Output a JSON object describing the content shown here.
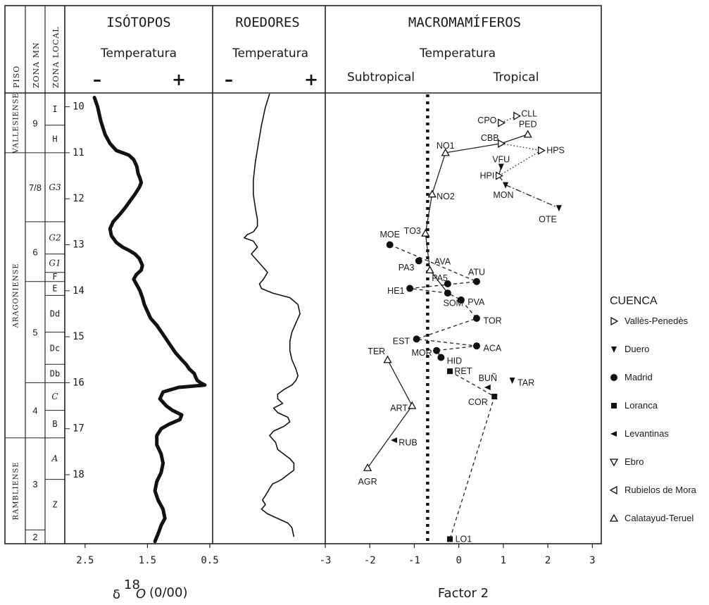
{
  "headers": {
    "piso": "PISO",
    "zona_mn": "ZONA MN",
    "zona_local": "ZONA LOCAL",
    "isotopos": "ISÓTOPOS",
    "roedores": "ROEDORES",
    "macromamiferos": "MACROMAMÍFEROS",
    "temperatura": "Temperatura",
    "minus": "–",
    "plus": "+",
    "subtropical": "Subtropical",
    "tropical": "Tropical"
  },
  "pisos": [
    {
      "label": "VALLESIENSE",
      "from": 9.7,
      "to": 11.0
    },
    {
      "label": "ARAGONIENSE",
      "from": 11.0,
      "to": 17.2
    },
    {
      "label": "RAMBLIENSE",
      "from": 17.2,
      "to": 19.5
    }
  ],
  "mn_zones": [
    {
      "label": "9",
      "from": 9.7,
      "to": 11.0
    },
    {
      "label": "7/8",
      "from": 11.0,
      "to": 12.5
    },
    {
      "label": "6",
      "from": 12.5,
      "to": 13.8
    },
    {
      "label": "5",
      "from": 13.8,
      "to": 16.0
    },
    {
      "label": "4",
      "from": 16.0,
      "to": 17.2
    },
    {
      "label": "3",
      "from": 17.2,
      "to": 19.2
    },
    {
      "label": "2",
      "from": 19.2,
      "to": 19.5
    }
  ],
  "local_zones": [
    {
      "label": "I",
      "from": 9.7,
      "to": 10.4,
      "italic": false
    },
    {
      "label": "H",
      "from": 10.4,
      "to": 11.0,
      "italic": false
    },
    {
      "label": "G3",
      "from": 11.0,
      "to": 12.5,
      "italic": true
    },
    {
      "label": "G2",
      "from": 12.5,
      "to": 13.2,
      "italic": true
    },
    {
      "label": "G1",
      "from": 13.2,
      "to": 13.6,
      "italic": true
    },
    {
      "label": "F",
      "from": 13.6,
      "to": 13.8,
      "italic": false
    },
    {
      "label": "E",
      "from": 13.8,
      "to": 14.1,
      "italic": false
    },
    {
      "label": "Dd",
      "from": 14.1,
      "to": 14.9,
      "italic": false
    },
    {
      "label": "Dc",
      "from": 14.9,
      "to": 15.6,
      "italic": false
    },
    {
      "label": "Db",
      "from": 15.6,
      "to": 16.0,
      "italic": false
    },
    {
      "label": "C",
      "from": 16.0,
      "to": 16.6,
      "italic": true
    },
    {
      "label": "B",
      "from": 16.6,
      "to": 17.2,
      "italic": false
    },
    {
      "label": "A",
      "from": 17.2,
      "to": 18.1,
      "italic": true
    },
    {
      "label": "Z",
      "from": 18.1,
      "to": 19.2,
      "italic": false
    }
  ],
  "age_ticks": [
    "10",
    "11",
    "12",
    "13",
    "14",
    "15",
    "16",
    "17",
    "18"
  ],
  "chart_data": [
    {
      "type": "line",
      "panel": "isotopos",
      "xlabel_symbol": "δ",
      "xlabel_sup": "18",
      "xlabel_var": "O",
      "xlabel_unit": "(0/00)",
      "xlim": [
        2.6,
        0.5
      ],
      "x_ticks": [
        "2.5",
        "1.5",
        "0.5"
      ],
      "x_tick_values": [
        2.5,
        1.5,
        0.5
      ],
      "ylim": [
        9.7,
        19.5
      ],
      "series": [
        {
          "x": [
            2.35,
            2.3,
            2.25,
            2.18,
            2.1,
            2.0,
            1.9,
            1.8,
            1.72,
            1.67,
            1.65,
            1.62,
            1.6,
            1.63,
            1.7,
            1.78,
            1.86,
            1.95,
            2.05,
            2.1,
            2.08,
            2.0,
            1.9,
            1.8,
            1.7,
            1.63,
            1.58,
            1.6,
            1.68,
            1.72,
            1.68,
            1.62,
            1.58,
            1.55,
            1.5,
            1.45,
            1.35,
            1.25,
            1.15,
            1.05,
            0.95,
            0.88,
            0.83,
            0.75,
            0.72,
            0.7,
            0.65,
            0.58,
            1.0,
            1.25,
            1.3,
            1.2,
            1.1,
            0.95,
            0.98,
            1.15,
            1.28,
            1.35,
            1.35,
            1.28,
            1.25,
            1.28,
            1.35,
            1.38,
            1.33,
            1.25,
            1.22,
            1.28,
            1.32,
            1.38
          ],
          "y": [
            9.8,
            10.0,
            10.3,
            10.6,
            10.8,
            10.95,
            11.0,
            11.05,
            11.15,
            11.3,
            11.45,
            11.55,
            11.65,
            11.75,
            11.9,
            12.05,
            12.2,
            12.35,
            12.5,
            12.65,
            12.8,
            12.95,
            13.05,
            13.12,
            13.2,
            13.3,
            13.45,
            13.55,
            13.65,
            13.75,
            13.85,
            14.0,
            14.15,
            14.3,
            14.45,
            14.6,
            14.75,
            14.95,
            15.15,
            15.35,
            15.5,
            15.6,
            15.7,
            15.8,
            15.9,
            15.95,
            16.0,
            16.05,
            16.1,
            16.2,
            16.35,
            16.5,
            16.6,
            16.7,
            16.8,
            16.9,
            17.0,
            17.15,
            17.35,
            17.55,
            17.75,
            17.95,
            18.15,
            18.35,
            18.55,
            18.75,
            18.95,
            19.1,
            19.25,
            19.45
          ]
        }
      ]
    },
    {
      "type": "line",
      "panel": "roedores",
      "xlim": [
        0.0,
        1.0
      ],
      "ylim": [
        9.7,
        19.5
      ],
      "series": [
        {
          "x": [
            0.52,
            0.48,
            0.44,
            0.41,
            0.38,
            0.36,
            0.36,
            0.38,
            0.4,
            0.4,
            0.36,
            0.3,
            0.27,
            0.36,
            0.4,
            0.34,
            0.4,
            0.44,
            0.5,
            0.46,
            0.42,
            0.44,
            0.55,
            0.72,
            0.8,
            0.82,
            0.78,
            0.74,
            0.72,
            0.72,
            0.74,
            0.78,
            0.8,
            0.78,
            0.74,
            0.66,
            0.6,
            0.6,
            0.65,
            0.56,
            0.6,
            0.7,
            0.72,
            0.66,
            0.56,
            0.52,
            0.58,
            0.6,
            0.66,
            0.72,
            0.76,
            0.76,
            0.7,
            0.64,
            0.6,
            0.55,
            0.52,
            0.48,
            0.45,
            0.48,
            0.44,
            0.5,
            0.6,
            0.7,
            0.74,
            0.76
          ],
          "y": [
            9.72,
            10.0,
            10.4,
            10.8,
            11.2,
            11.6,
            11.9,
            12.2,
            12.45,
            12.6,
            12.72,
            12.78,
            12.85,
            12.92,
            13.05,
            13.2,
            13.35,
            13.45,
            13.6,
            13.75,
            13.85,
            13.95,
            14.05,
            14.15,
            14.3,
            14.5,
            14.7,
            14.9,
            15.1,
            15.3,
            15.5,
            15.7,
            15.85,
            15.95,
            16.05,
            16.15,
            16.25,
            16.35,
            16.45,
            16.55,
            16.65,
            16.75,
            16.85,
            16.95,
            17.05,
            17.15,
            17.3,
            17.45,
            17.55,
            17.65,
            17.75,
            17.9,
            18.0,
            18.1,
            18.15,
            18.2,
            18.3,
            18.45,
            18.55,
            18.65,
            18.75,
            18.85,
            18.95,
            19.05,
            19.15,
            19.35
          ]
        }
      ]
    },
    {
      "type": "scatter",
      "panel": "macromamiferos",
      "xlabel": "Factor 2",
      "xlim": [
        -3,
        3.2
      ],
      "x_ticks": [
        "-3",
        "-2",
        "-1",
        "0",
        "1",
        "2",
        "3"
      ],
      "x_tick_values": [
        -3,
        -2,
        -1,
        0,
        1,
        2,
        3
      ],
      "ylim": [
        9.7,
        19.5
      ],
      "threshold_x": -0.7,
      "points": [
        {
          "label": "CLL",
          "x": 1.3,
          "y": 10.2,
          "marker": "tri-right",
          "lx": 0.1,
          "ly": -0.05,
          "anchor": "start"
        },
        {
          "label": "CPO",
          "x": 0.95,
          "y": 10.35,
          "marker": "tri-right",
          "lx": -0.1,
          "ly": -0.05,
          "anchor": "end"
        },
        {
          "label": "PED",
          "x": 1.55,
          "y": 10.6,
          "marker": "tri-up",
          "lx": 0.0,
          "ly": -0.22,
          "anchor": "middle"
        },
        {
          "label": "CBB",
          "x": 0.95,
          "y": 10.8,
          "marker": "tri-right",
          "lx": -0.05,
          "ly": -0.12,
          "anchor": "end"
        },
        {
          "label": "NO1",
          "x": -0.3,
          "y": 11.0,
          "marker": "tri-up",
          "lx": 0.0,
          "ly": -0.15,
          "anchor": "middle"
        },
        {
          "label": "HPS",
          "x": 1.85,
          "y": 10.95,
          "marker": "tri-right",
          "lx": 0.12,
          "ly": 0.0,
          "anchor": "start"
        },
        {
          "label": "VFU",
          "x": 0.95,
          "y": 11.3,
          "marker": "tri-down",
          "lx": 0.0,
          "ly": -0.15,
          "anchor": "middle"
        },
        {
          "label": "HPI",
          "x": 0.9,
          "y": 11.5,
          "marker": "tri-right",
          "lx": -0.1,
          "ly": 0.0,
          "anchor": "end"
        },
        {
          "label": "MON",
          "x": 1.05,
          "y": 11.7,
          "marker": "tri-down",
          "lx": -0.05,
          "ly": 0.22,
          "anchor": "middle"
        },
        {
          "label": "NO2",
          "x": -0.6,
          "y": 11.9,
          "marker": "tri-up",
          "lx": 0.1,
          "ly": 0.05,
          "anchor": "start"
        },
        {
          "label": "OTE",
          "x": 2.25,
          "y": 12.2,
          "marker": "tri-down",
          "lx": -0.05,
          "ly": 0.25,
          "anchor": "end"
        },
        {
          "label": "TO3",
          "x": -0.75,
          "y": 12.75,
          "marker": "tri-up",
          "lx": -0.1,
          "ly": -0.05,
          "anchor": "end"
        },
        {
          "label": "MOE",
          "x": -1.55,
          "y": 13.0,
          "marker": "circle",
          "lx": 0.0,
          "ly": -0.22,
          "anchor": "middle"
        },
        {
          "label": "PA3",
          "x": -0.9,
          "y": 13.35,
          "marker": "circle",
          "lx": -0.1,
          "ly": 0.15,
          "anchor": "end"
        },
        {
          "label": "AVA",
          "x": -0.65,
          "y": 13.55,
          "marker": "tri-up",
          "lx": 0.1,
          "ly": -0.18,
          "anchor": "start"
        },
        {
          "label": "ATU",
          "x": 0.4,
          "y": 13.8,
          "marker": "circle",
          "lx": 0.0,
          "ly": -0.2,
          "anchor": "middle"
        },
        {
          "label": "PA5",
          "x": -0.25,
          "y": 13.85,
          "marker": "circle",
          "lx": 0.0,
          "ly": -0.12,
          "anchor": "end"
        },
        {
          "label": "HE1",
          "x": -1.1,
          "y": 13.95,
          "marker": "circle",
          "lx": -0.12,
          "ly": 0.05,
          "anchor": "end"
        },
        {
          "label": "SOM",
          "x": -0.25,
          "y": 14.05,
          "marker": "circle",
          "lx": -0.1,
          "ly": 0.22,
          "anchor": "start"
        },
        {
          "label": "PVA",
          "x": 0.05,
          "y": 14.2,
          "marker": "circle",
          "lx": 0.15,
          "ly": 0.05,
          "anchor": "start"
        },
        {
          "label": "TOR",
          "x": 0.4,
          "y": 14.6,
          "marker": "circle",
          "lx": 0.15,
          "ly": 0.05,
          "anchor": "start"
        },
        {
          "label": "EST",
          "x": -0.95,
          "y": 15.05,
          "marker": "circle",
          "lx": -0.15,
          "ly": 0.05,
          "anchor": "end"
        },
        {
          "label": "ACA",
          "x": 0.4,
          "y": 15.2,
          "marker": "circle",
          "lx": 0.15,
          "ly": 0.05,
          "anchor": "start"
        },
        {
          "label": "MOR",
          "x": -0.5,
          "y": 15.3,
          "marker": "circle",
          "lx": -0.1,
          "ly": 0.05,
          "anchor": "end"
        },
        {
          "label": "HID",
          "x": -0.4,
          "y": 15.45,
          "marker": "circle",
          "lx": 0.13,
          "ly": 0.08,
          "anchor": "start"
        },
        {
          "label": "TER",
          "x": -1.6,
          "y": 15.5,
          "marker": "tri-up",
          "lx": -0.25,
          "ly": -0.18,
          "anchor": "middle"
        },
        {
          "label": "RET",
          "x": -0.2,
          "y": 15.75,
          "marker": "square",
          "lx": 0.1,
          "ly": 0.0,
          "anchor": "start"
        },
        {
          "label": "TAR",
          "x": 1.2,
          "y": 15.95,
          "marker": "tri-down",
          "lx": 0.12,
          "ly": 0.05,
          "anchor": "start"
        },
        {
          "label": "BUÑ",
          "x": 0.65,
          "y": 16.1,
          "marker": "tri-left",
          "lx": 0.0,
          "ly": -0.2,
          "anchor": "middle"
        },
        {
          "label": "COR",
          "x": 0.8,
          "y": 16.3,
          "marker": "square",
          "lx": -0.15,
          "ly": 0.12,
          "anchor": "end"
        },
        {
          "label": "ART",
          "x": -1.05,
          "y": 16.5,
          "marker": "tri-up",
          "lx": -0.1,
          "ly": 0.05,
          "anchor": "end"
        },
        {
          "label": "RUB",
          "x": -1.45,
          "y": 17.25,
          "marker": "tri-left",
          "lx": 0.1,
          "ly": 0.05,
          "anchor": "start"
        },
        {
          "label": "AGR",
          "x": -2.05,
          "y": 17.85,
          "marker": "tri-up",
          "lx": 0.0,
          "ly": 0.3,
          "anchor": "middle"
        },
        {
          "label": "LO1",
          "x": -0.2,
          "y": 19.4,
          "marker": "square",
          "lx": 0.12,
          "ly": 0.0,
          "anchor": "start"
        }
      ],
      "connections": [
        {
          "style": "solid",
          "path": [
            "PED",
            "CBB",
            "NO1",
            "NO2",
            "TO3",
            "AVA",
            "SOM"
          ]
        },
        {
          "style": "dotted",
          "path": [
            "CPO",
            "CLL"
          ]
        },
        {
          "style": "dotted",
          "path": [
            "CBB",
            "HPS",
            "HPI"
          ]
        },
        {
          "style": "solid",
          "path": [
            "VFU",
            "HPI"
          ]
        },
        {
          "style": "dashdot",
          "path": [
            "HPI",
            "MON",
            "OTE"
          ]
        },
        {
          "style": "dashed",
          "path": [
            "MOE",
            "ATU",
            "HE1",
            "SOM",
            "PVA",
            "TOR",
            "EST",
            "ACA",
            "MOR",
            "HID"
          ]
        },
        {
          "style": "dashed",
          "path": [
            "RET",
            "COR",
            "LO1"
          ]
        },
        {
          "style": "solid",
          "path": [
            "TER",
            "ART",
            "AGR"
          ]
        }
      ]
    }
  ],
  "legend": {
    "title": "CUENCA",
    "items": [
      {
        "label": "Vallès-Penedès",
        "marker": "tri-right"
      },
      {
        "label": "Duero",
        "marker": "tri-down-filled"
      },
      {
        "label": "Madrid",
        "marker": "circle"
      },
      {
        "label": "Loranca",
        "marker": "square"
      },
      {
        "label": "Levantinas",
        "marker": "tri-left"
      },
      {
        "label": "Ebro",
        "marker": "tri-down-open"
      },
      {
        "label": "Rubielos de Mora",
        "marker": "tri-left-open"
      },
      {
        "label": "Calatayud-Teruel",
        "marker": "tri-up"
      }
    ]
  }
}
